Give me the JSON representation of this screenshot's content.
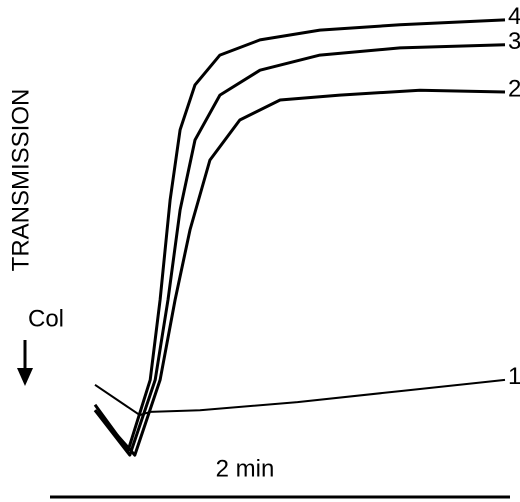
{
  "chart_data": {
    "type": "line",
    "ylabel": "TRANSMISSION",
    "annotation": "Col",
    "scale_bar_label": "2 min",
    "xlim": [
      0,
      100
    ],
    "ylim": [
      0,
      100
    ],
    "series": [
      {
        "name": "1",
        "color": "#000000",
        "x": [
          1.2,
          12,
          14.5,
          26.5,
          50,
          75,
          100
        ],
        "values": [
          16.9,
          10.1,
          10.8,
          11.2,
          13,
          15.5,
          18
        ]
      },
      {
        "name": "2",
        "color": "#000000",
        "x": [
          1.2,
          10.8,
          16.9,
          20.5,
          24.1,
          28.9,
          36.1,
          45.8,
          60.2,
          79.5,
          100
        ],
        "values": [
          11.2,
          1.1,
          18,
          36,
          51.7,
          67.4,
          76.4,
          80.9,
          82,
          83.1,
          82.7
        ]
      },
      {
        "name": "3",
        "color": "#000000",
        "x": [
          1.2,
          9.6,
          15.7,
          18.8,
          21.7,
          25.3,
          31.3,
          40.96,
          55.4,
          74.7,
          100
        ],
        "values": [
          11.2,
          1.1,
          18,
          36,
          56.2,
          71.9,
          82,
          87.6,
          91,
          92.6,
          93.3
        ]
      },
      {
        "name": "4",
        "color": "#000000",
        "x": [
          1.2,
          9.2,
          14.5,
          16.9,
          19.3,
          21.7,
          25.3,
          31.3,
          40.96,
          55.4,
          74.7,
          100
        ],
        "values": [
          12.4,
          2.2,
          18,
          36,
          58.4,
          74.2,
          84.3,
          91,
          94.4,
          96.6,
          97.8,
          98.9
        ]
      }
    ]
  }
}
